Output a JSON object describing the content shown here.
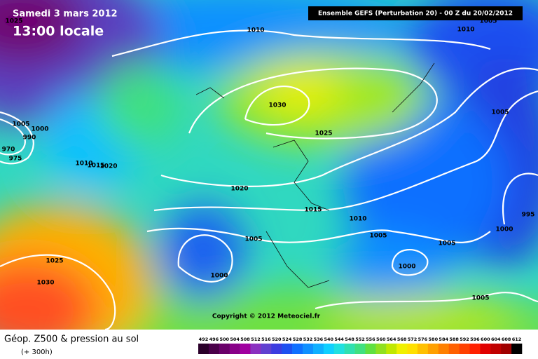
{
  "header": {
    "date": "Samedi 3 mars 2012",
    "time": "13:00 locale",
    "run": "Ensemble GEFS (Perturbation 20)  -  00 Z du 20/02/2012"
  },
  "copyright": "Copyright © 2012 Meteociel.fr",
  "footer": {
    "title": "Géop. Z500 & pression au sol",
    "lead": "(+ 300h)"
  },
  "isobar_labels": [
    1025,
    1010,
    1010,
    1005,
    1030,
    1025,
    1005,
    1005,
    1000,
    990,
    970,
    975,
    1010,
    1015,
    1020,
    1020,
    1015,
    1010,
    995,
    1000,
    1005,
    1005,
    1005,
    1000,
    1000,
    1025,
    1030,
    1005
  ],
  "scale": {
    "values": [
      492,
      496,
      500,
      504,
      508,
      512,
      516,
      520,
      524,
      528,
      532,
      536,
      540,
      544,
      548,
      552,
      556,
      560,
      564,
      568,
      572,
      576,
      580,
      584,
      588,
      592,
      596,
      600,
      604,
      608,
      612
    ],
    "colors": [
      "#2a002a",
      "#4a004a",
      "#6a006a",
      "#880088",
      "#a000a0",
      "#8a30c0",
      "#6040d0",
      "#3c3ce0",
      "#1e50f0",
      "#1070ff",
      "#1090ff",
      "#10b0ff",
      "#10d0ff",
      "#20e0e0",
      "#30e0b0",
      "#40e080",
      "#60e040",
      "#90e020",
      "#c0e800",
      "#f0f000",
      "#ffe000",
      "#ffc000",
      "#ffa000",
      "#ff8000",
      "#ff6000",
      "#ff4000",
      "#ff2000",
      "#e00000",
      "#c00000",
      "#a00000",
      "#000000"
    ]
  }
}
